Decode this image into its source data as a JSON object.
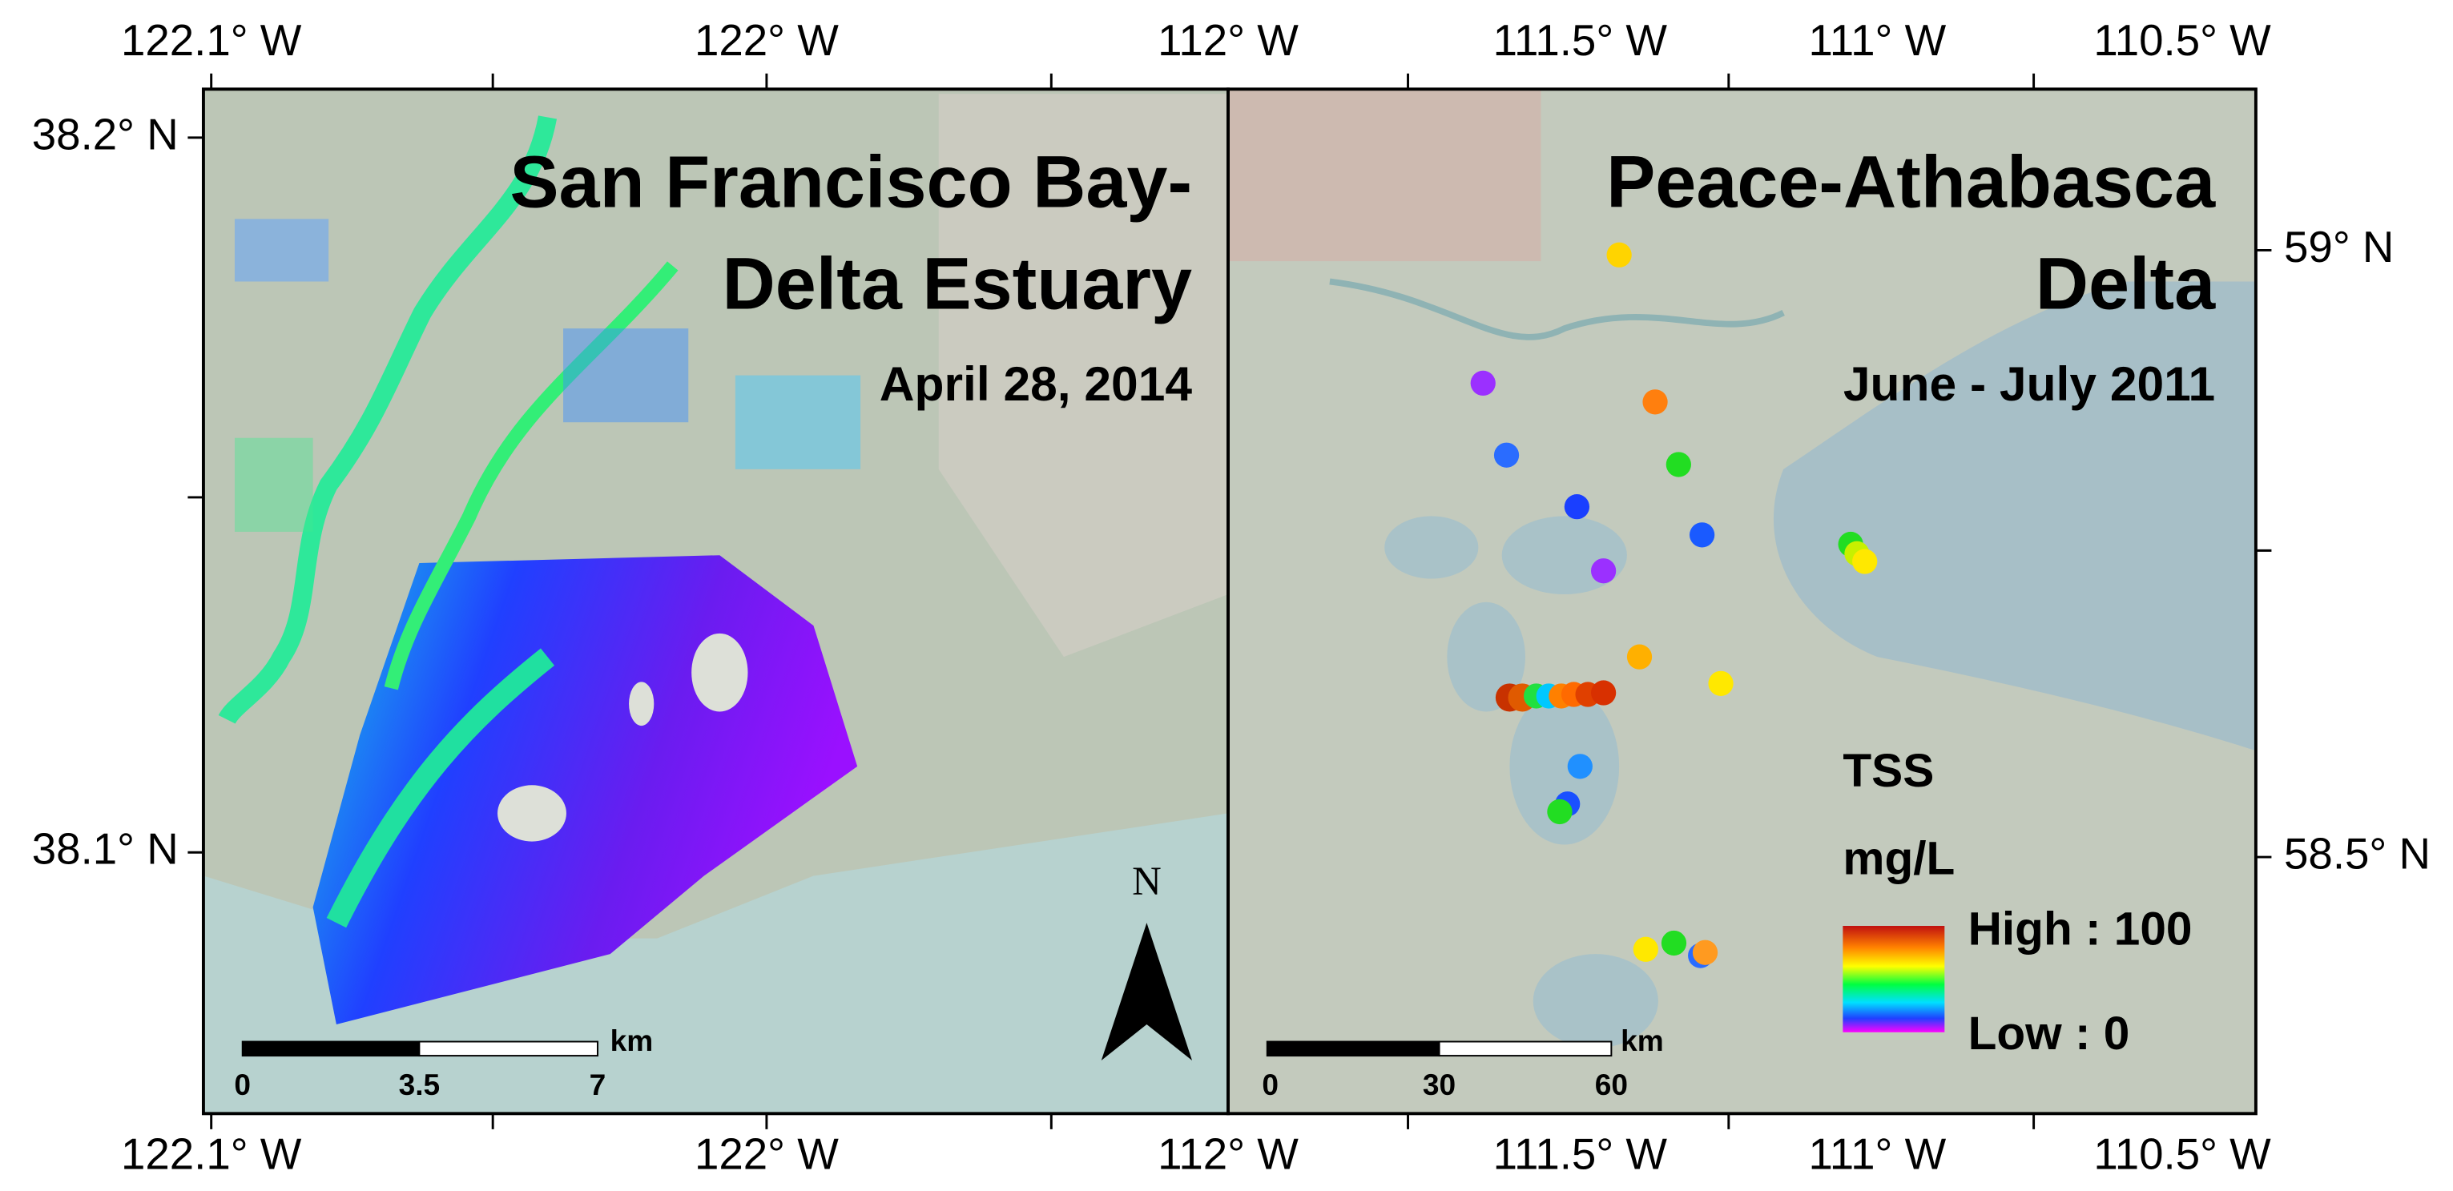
{
  "left_panel": {
    "title_lines": [
      "San Francisco Bay-",
      "Delta Estuary"
    ],
    "date": "April 28, 2014",
    "lon_ticks": [
      "122.1° W",
      "122° W"
    ],
    "lat_ticks": [
      "38.2° N",
      "38.1° N"
    ],
    "north": "N",
    "scale_bar": {
      "labels": [
        "0",
        "3.5",
        "7"
      ],
      "unit": "km"
    }
  },
  "right_panel": {
    "title_lines": [
      "Peace-Athabasca",
      "Delta"
    ],
    "date": "June - July 2011",
    "lon_ticks": [
      "112° W",
      "111.5° W",
      "111° W",
      "110.5° W"
    ],
    "lat_ticks": [
      "59° N",
      "58.5° N"
    ],
    "legend": {
      "title": "TSS",
      "unit": "mg/L",
      "high": "High : 100",
      "low": "Low : 0"
    },
    "scale_bar": {
      "labels": [
        "0",
        "30",
        "60"
      ],
      "unit": "km"
    }
  }
}
